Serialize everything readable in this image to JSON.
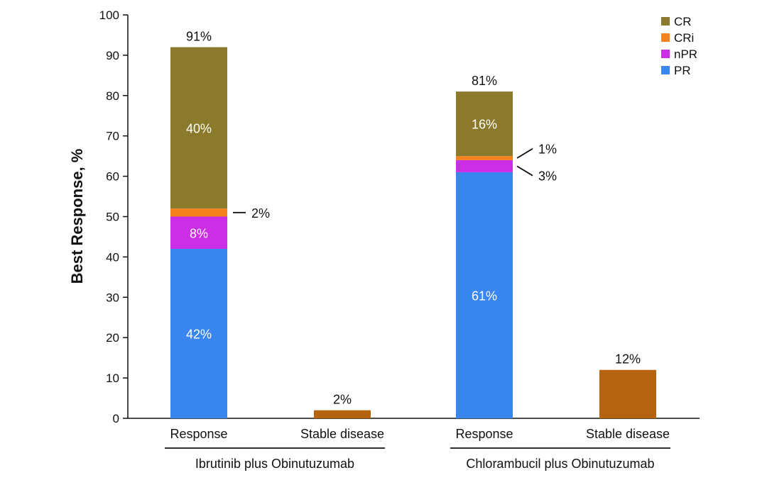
{
  "chart_data": {
    "type": "bar",
    "stacked": true,
    "ylabel": "Best Response, %",
    "ylim": [
      0,
      100
    ],
    "yticks": [
      0,
      10,
      20,
      30,
      40,
      50,
      60,
      70,
      80,
      90,
      100
    ],
    "legend": {
      "placement": "top-right",
      "entries": [
        {
          "key": "CR",
          "label": "CR",
          "color": "#8c7a2c"
        },
        {
          "key": "CRi",
          "label": "CRi",
          "color": "#f5821f"
        },
        {
          "key": "nPR",
          "label": "nPR",
          "color": "#cc2ee8"
        },
        {
          "key": "PR",
          "label": "PR",
          "color": "#3a86f0"
        }
      ]
    },
    "groups": [
      {
        "name": "Ibrutinib plus Obinutuzumab",
        "categories": [
          {
            "label": "Response",
            "total_label": "91%",
            "segments": [
              {
                "key": "PR",
                "value": 42,
                "label": "42%",
                "label_position": "inside"
              },
              {
                "key": "nPR",
                "value": 8,
                "label": "8%",
                "label_position": "inside"
              },
              {
                "key": "CRi",
                "value": 2,
                "label": "2%",
                "label_position": "callout"
              },
              {
                "key": "CR",
                "value": 40,
                "label": "40%",
                "label_position": "inside"
              }
            ]
          },
          {
            "label": "Stable disease",
            "total_label": "2%",
            "color": "#b5630e",
            "value": 2
          }
        ]
      },
      {
        "name": "Chlorambucil plus Obinutuzumab",
        "categories": [
          {
            "label": "Response",
            "total_label": "81%",
            "segments": [
              {
                "key": "PR",
                "value": 61,
                "label": "61%",
                "label_position": "inside"
              },
              {
                "key": "nPR",
                "value": 3,
                "label": "3%",
                "label_position": "callout"
              },
              {
                "key": "CRi",
                "value": 1,
                "label": "1%",
                "label_position": "callout"
              },
              {
                "key": "CR",
                "value": 16,
                "label": "16%",
                "label_position": "inside"
              }
            ]
          },
          {
            "label": "Stable disease",
            "total_label": "12%",
            "color": "#b5630e",
            "value": 12
          }
        ]
      }
    ]
  }
}
